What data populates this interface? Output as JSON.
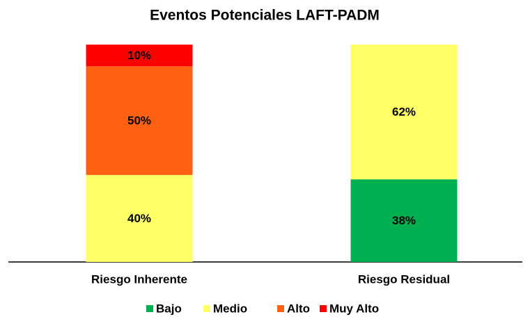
{
  "chart_data": {
    "type": "stacked_bar",
    "title": "Eventos Potenciales LAFT-PADM",
    "categories": [
      "Riesgo Inherente",
      "Riesgo Residual"
    ],
    "series": [
      {
        "name": "Bajo",
        "color": "#00b050",
        "values": [
          0,
          38
        ],
        "value_labels": [
          null,
          "38%"
        ]
      },
      {
        "name": "Medio",
        "color": "#ffff66",
        "values": [
          40,
          62
        ],
        "value_labels": [
          "40%",
          "62%"
        ]
      },
      {
        "name": "Alto",
        "color": "#ff6113",
        "values": [
          50,
          0
        ],
        "value_labels": [
          "50%",
          null
        ]
      },
      {
        "name": "Muy Alto",
        "color": "#ff0000",
        "values": [
          10,
          0
        ],
        "value_labels": [
          "10%",
          null
        ]
      }
    ],
    "ylim": [
      0,
      100
    ],
    "legend": "bottom"
  }
}
